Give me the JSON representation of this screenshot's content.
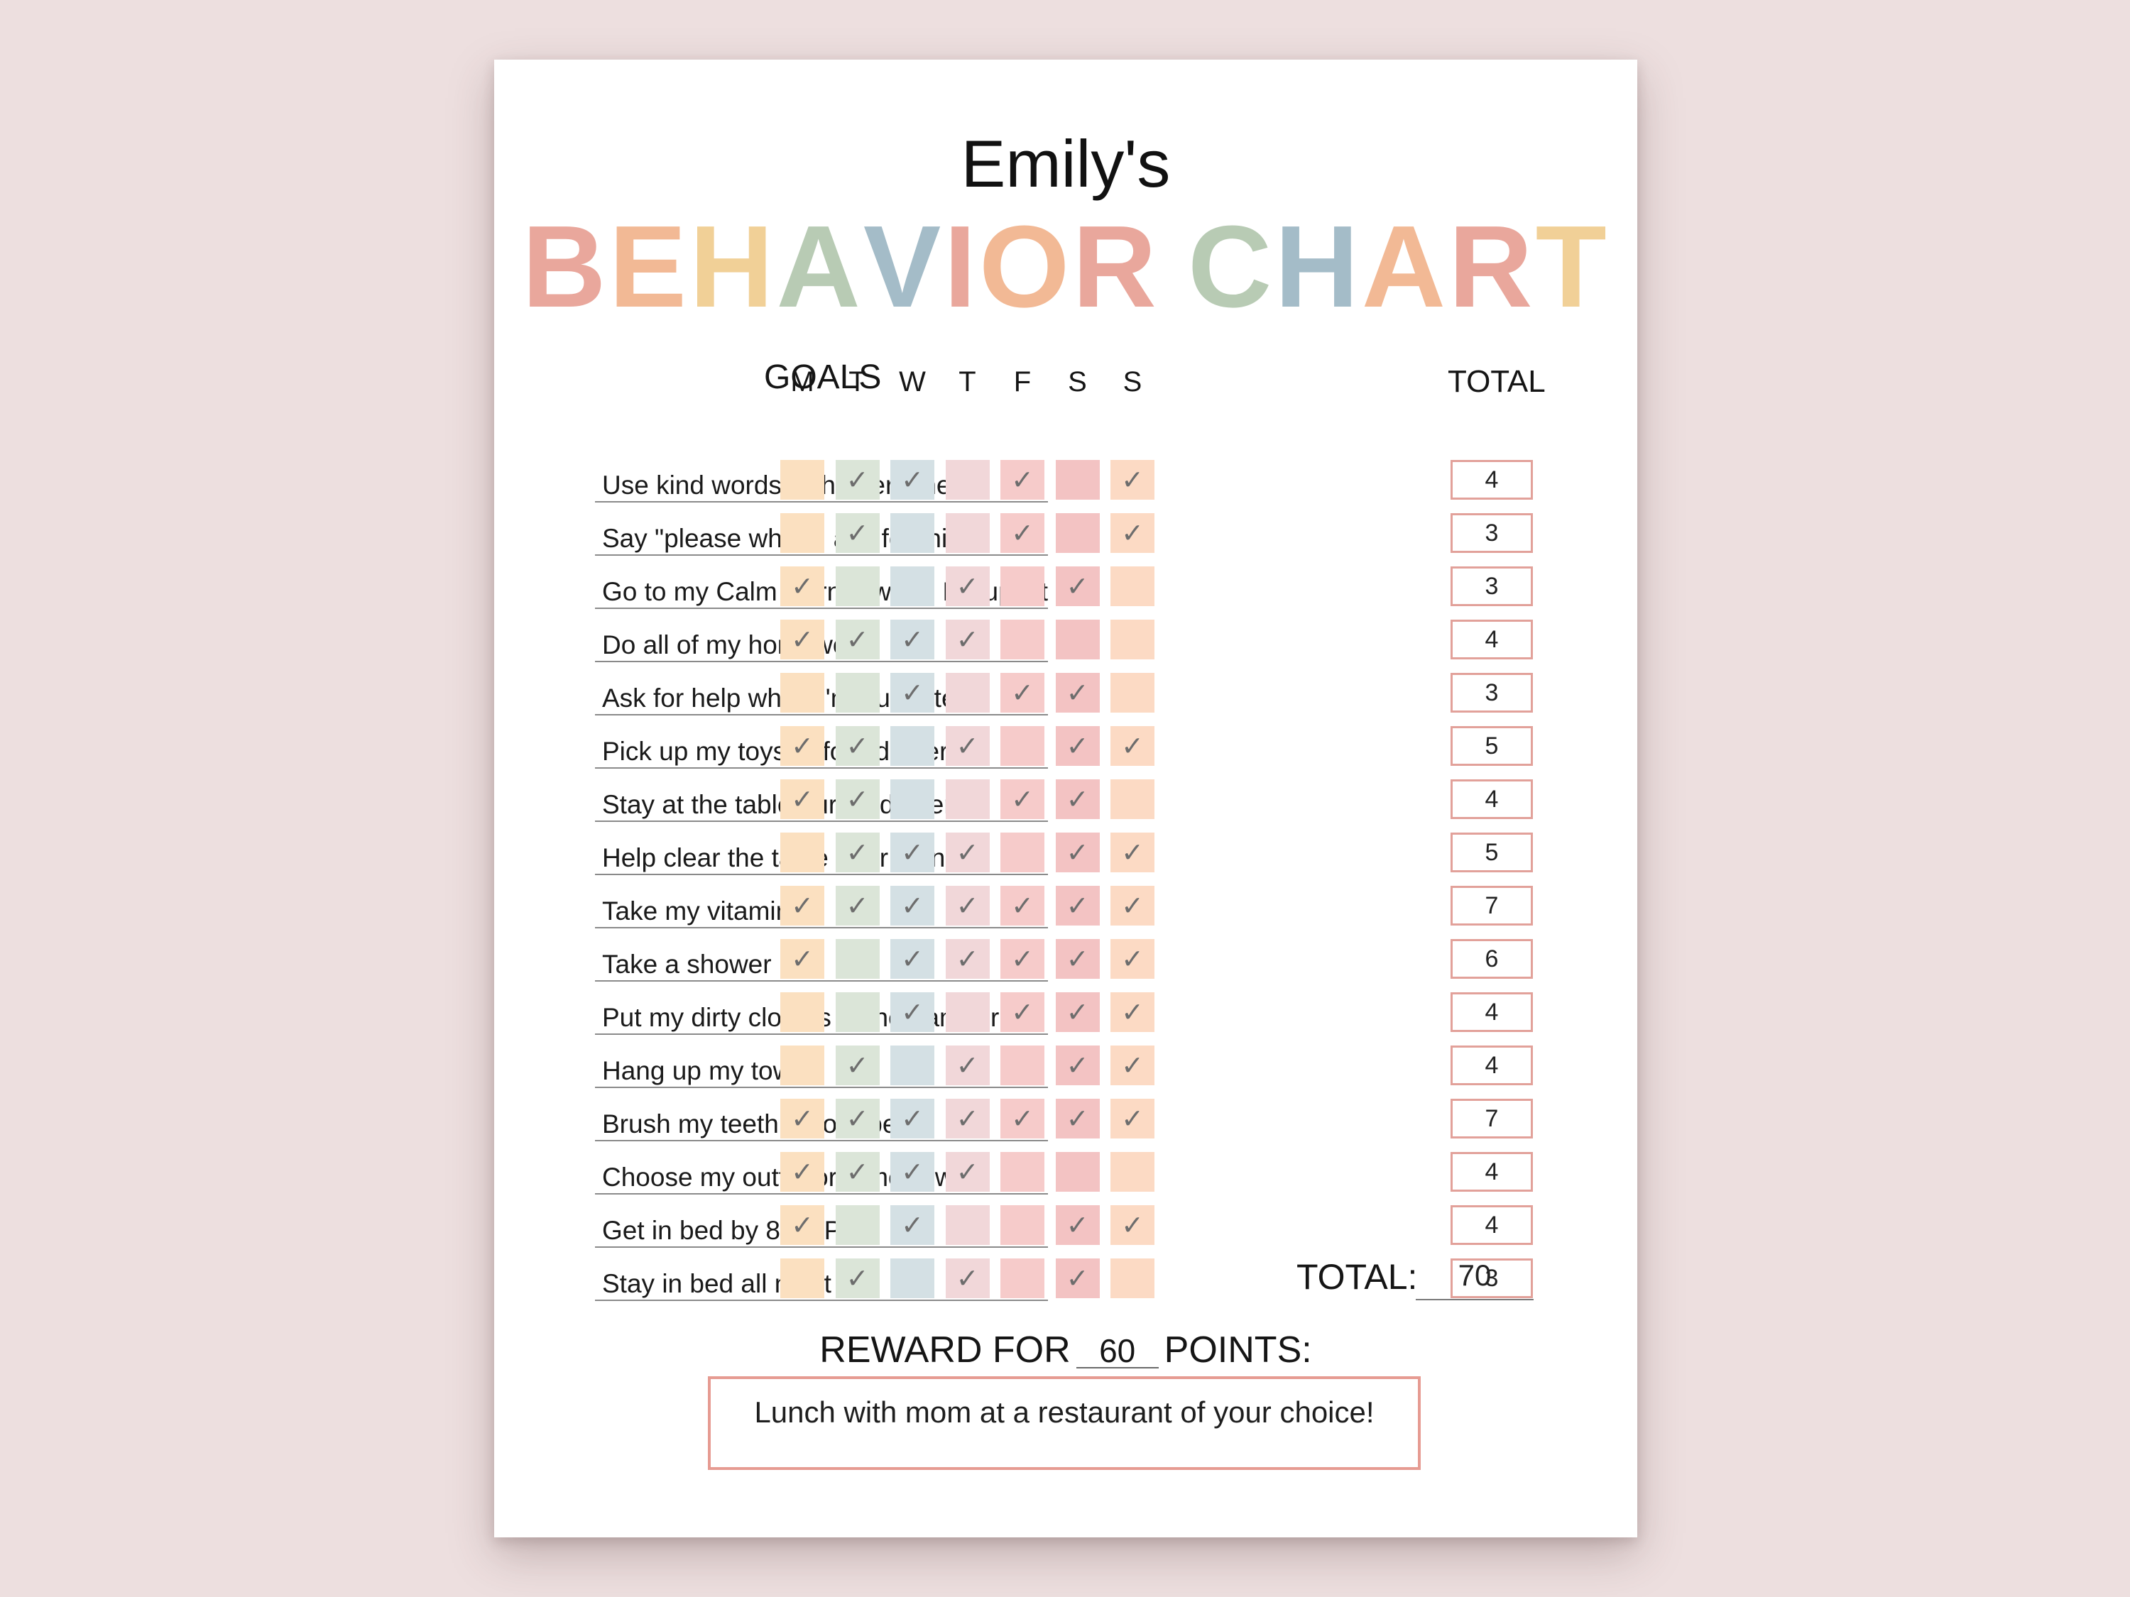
{
  "header": {
    "name": "Emily's",
    "title_letters": [
      "B",
      "E",
      "H",
      "A",
      "V",
      "I",
      "O",
      "R",
      " ",
      "C",
      "H",
      "A",
      "R",
      "T"
    ],
    "title_colors": [
      "#e9a79c",
      "#f2b995",
      "#f1d097",
      "#b8cbb4",
      "#a4bcc8",
      "#e9a79c",
      "#f2b995",
      "#e9a79c",
      "#ffffff",
      "#b8cbb4",
      "#a4bcc8",
      "#f2b995",
      "#e9a79c",
      "#f1d097"
    ]
  },
  "table": {
    "goals_header": "GOALS",
    "total_header": "TOTAL",
    "days": [
      "M",
      "T",
      "W",
      "T",
      "F",
      "S",
      "S"
    ],
    "day_colors": [
      "#fbe0c0",
      "#dbe5d8",
      "#d4e0e4",
      "#f1d7d9",
      "#f6cbca",
      "#f3c3c3",
      "#fcdac4"
    ],
    "check_symbol": "✓",
    "rows": [
      {
        "goal": "Use kind words with everyone",
        "checks": [
          0,
          1,
          1,
          0,
          1,
          0,
          1
        ],
        "total": "4"
      },
      {
        "goal": "Say \"please when I ask for things",
        "checks": [
          0,
          1,
          0,
          0,
          1,
          0,
          1
        ],
        "total": "3"
      },
      {
        "goal": "Go to my Calm Corner when I'm upset",
        "checks": [
          1,
          0,
          0,
          1,
          0,
          1,
          0
        ],
        "total": "3"
      },
      {
        "goal": "Do all of my homework",
        "checks": [
          1,
          1,
          1,
          1,
          0,
          0,
          0
        ],
        "total": "4"
      },
      {
        "goal": "Ask for help when I'm frustrated",
        "checks": [
          0,
          0,
          1,
          0,
          1,
          1,
          0
        ],
        "total": "3"
      },
      {
        "goal": "Pick up my toys before dinner",
        "checks": [
          1,
          1,
          0,
          1,
          0,
          1,
          1
        ],
        "total": "5"
      },
      {
        "goal": "Stay at the table during dinner",
        "checks": [
          1,
          1,
          0,
          0,
          1,
          1,
          0
        ],
        "total": "4"
      },
      {
        "goal": "Help clear the table after dinner",
        "checks": [
          0,
          1,
          1,
          1,
          0,
          1,
          1
        ],
        "total": "5"
      },
      {
        "goal": "Take my vitamin",
        "checks": [
          1,
          1,
          1,
          1,
          1,
          1,
          1
        ],
        "total": "7"
      },
      {
        "goal": "Take a shower",
        "checks": [
          1,
          0,
          1,
          1,
          1,
          1,
          1
        ],
        "total": "6"
      },
      {
        "goal": "Put my dirty clothes in the hamper",
        "checks": [
          0,
          0,
          1,
          0,
          1,
          1,
          1
        ],
        "total": "4"
      },
      {
        "goal": "Hang up my towel",
        "checks": [
          0,
          1,
          0,
          1,
          0,
          1,
          1
        ],
        "total": "4"
      },
      {
        "goal": "Brush my teeth before bed",
        "checks": [
          1,
          1,
          1,
          1,
          1,
          1,
          1
        ],
        "total": "7"
      },
      {
        "goal": "Choose my outfit for tomorrow",
        "checks": [
          1,
          1,
          1,
          1,
          0,
          0,
          0
        ],
        "total": "4"
      },
      {
        "goal": "Get in bed by 8:00 PM",
        "checks": [
          1,
          0,
          1,
          0,
          0,
          1,
          1
        ],
        "total": "4"
      },
      {
        "goal": "Stay in bed all night",
        "checks": [
          0,
          1,
          0,
          1,
          0,
          1,
          0
        ],
        "total": "3"
      }
    ]
  },
  "summary": {
    "total_label": "TOTAL:",
    "total_value": "70",
    "reward_prefix": "REWARD FOR",
    "reward_points": "60",
    "reward_suffix": "POINTS:",
    "reward_text": "Lunch with mom at a restaurant of your choice!",
    "reward_border_color": "#e69b92"
  }
}
